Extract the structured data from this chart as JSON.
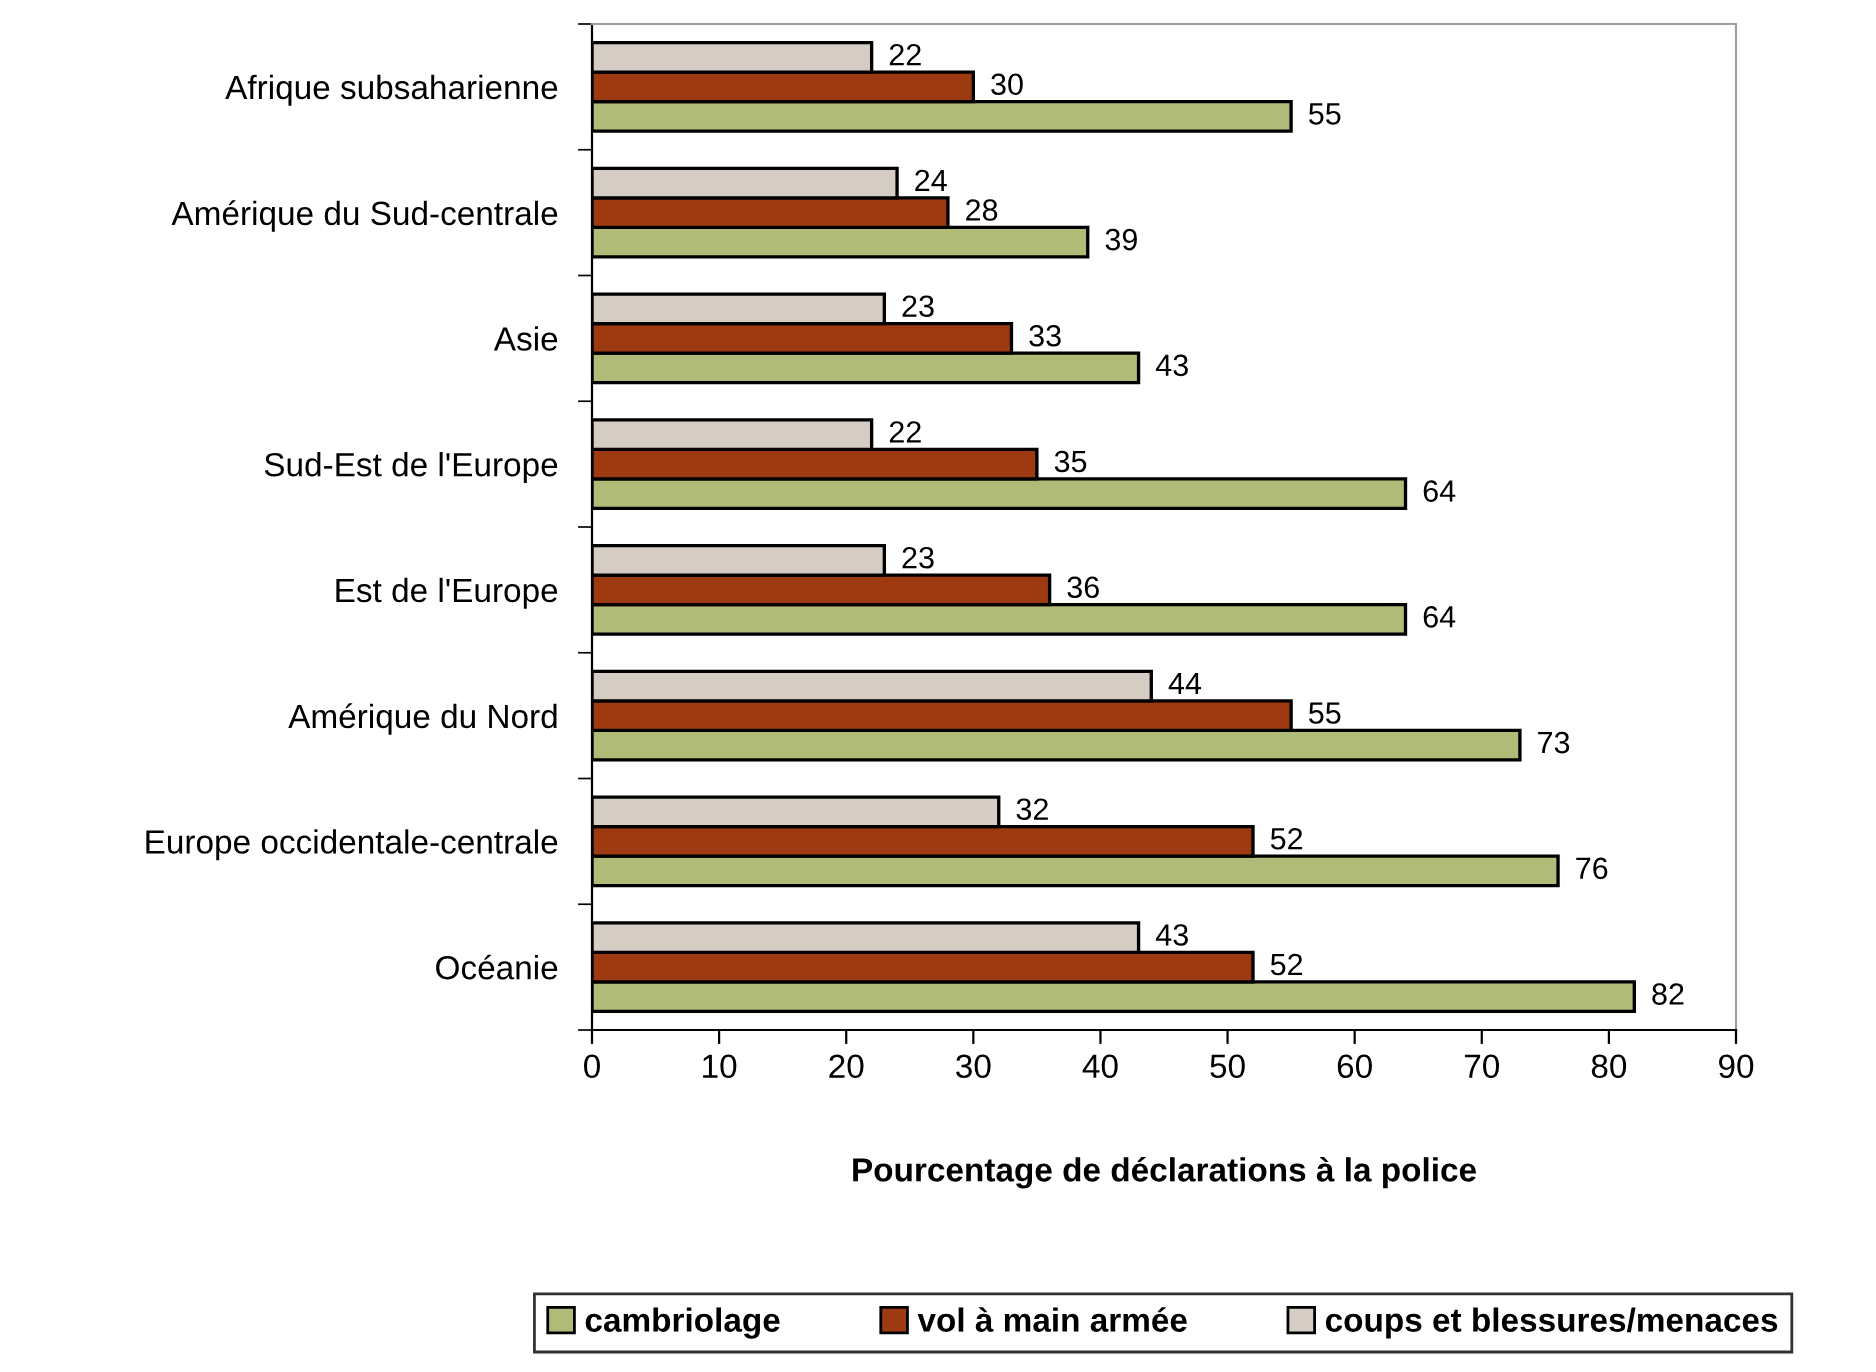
{
  "chart_data": {
    "type": "bar",
    "orientation": "horizontal",
    "xlabel": "Pourcentage de déclarations à la police",
    "categories": [
      "Afrique subsaharienne",
      "Amérique du Sud-centrale",
      "Asie",
      "Sud-Est de l'Europe",
      "Est de l'Europe",
      "Amérique du Nord",
      "Europe occidentale-centrale",
      "Océanie"
    ],
    "series": [
      {
        "name": "cambriolage",
        "color": "#b0bb78",
        "values": [
          55,
          39,
          43,
          64,
          64,
          73,
          76,
          82
        ]
      },
      {
        "name": "vol à main armée",
        "color": "#9e3a12",
        "values": [
          30,
          28,
          33,
          35,
          36,
          55,
          52,
          52
        ]
      },
      {
        "name": "coups et blessures/menaces",
        "color": "#d5ccc3",
        "values": [
          22,
          24,
          23,
          22,
          23,
          44,
          32,
          43
        ]
      }
    ],
    "xlim": [
      0,
      90
    ],
    "xticks": [
      0,
      10,
      20,
      30,
      40,
      50,
      60,
      70,
      80,
      90
    ],
    "data_labels": true,
    "legend": "bottom",
    "grid": false
  }
}
